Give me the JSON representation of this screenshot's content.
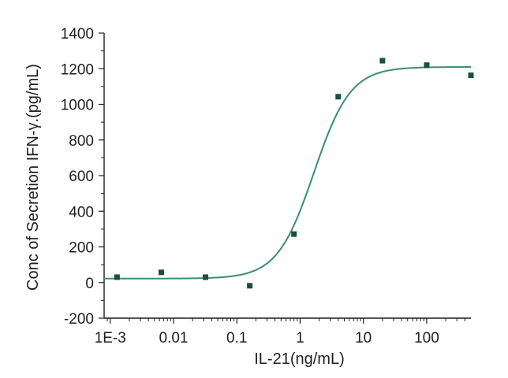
{
  "chart_data": {
    "type": "scatter",
    "title": "",
    "xlabel": "IL-21(ng/mL)",
    "ylabel": "Conc of Secretion IFN-γ.(pg/mL)",
    "x_scale": "log",
    "xlim": [
      0.0008,
      500
    ],
    "ylim": [
      -200,
      1400
    ],
    "x_ticks": [
      0.001,
      0.01,
      0.1,
      1,
      10,
      100
    ],
    "x_tick_labels": [
      "1E-3",
      "0.01",
      "0.1",
      "1",
      "10",
      "100"
    ],
    "y_ticks": [
      -200,
      0,
      200,
      400,
      600,
      800,
      1000,
      1200,
      1400
    ],
    "y_tick_labels": [
      "-200",
      "0",
      "200",
      "400",
      "600",
      "800",
      "1000",
      "1200",
      "1400"
    ],
    "grid": false,
    "series": [
      {
        "type": "scatter",
        "points": [
          {
            "x": 0.00128,
            "y": 30
          },
          {
            "x": 0.0064,
            "y": 57
          },
          {
            "x": 0.032,
            "y": 30
          },
          {
            "x": 0.16,
            "y": -18
          },
          {
            "x": 0.8,
            "y": 272
          },
          {
            "x": 4,
            "y": 1043
          },
          {
            "x": 20,
            "y": 1245
          },
          {
            "x": 100,
            "y": 1220
          },
          {
            "x": 500,
            "y": 1163
          }
        ]
      },
      {
        "type": "line",
        "fit": {
          "bottom": 22,
          "top": 1210,
          "ec50": 1.65,
          "hill": 1.5
        }
      }
    ],
    "colors": {
      "marker": "#1b4f3a",
      "curve": "#3a8d6f",
      "axis": "#1f1f1f"
    }
  }
}
